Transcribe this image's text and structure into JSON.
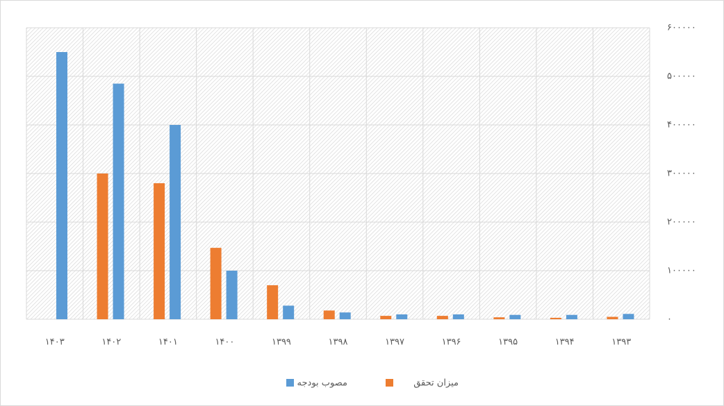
{
  "chart_data": {
    "type": "bar",
    "categories": [
      "۱۴۰۳",
      "۱۴۰۲",
      "۱۴۰۱",
      "۱۴۰۰",
      "۱۳۹۹",
      "۱۳۹۸",
      "۱۳۹۷",
      "۱۳۹۶",
      "۱۳۹۵",
      "۱۳۹۴",
      "۱۳۹۳"
    ],
    "series": [
      {
        "name": "میزان تحقق",
        "color": "#ed7d31",
        "values": [
          null,
          300000,
          280000,
          147000,
          70000,
          18000,
          7000,
          7000,
          4000,
          3000,
          5000
        ]
      },
      {
        "name": "مصوب بودجه",
        "color": "#5b9bd5",
        "values": [
          550000,
          485000,
          400000,
          100000,
          28000,
          14000,
          10000,
          10000,
          9000,
          9000,
          11000
        ]
      }
    ],
    "ylim": [
      0,
      600000
    ],
    "yticks": [
      {
        "value": 0,
        "label": "۰"
      },
      {
        "value": 100000,
        "label": "۱۰۰۰۰۰"
      },
      {
        "value": 200000,
        "label": "۲۰۰۰۰۰"
      },
      {
        "value": 300000,
        "label": "۳۰۰۰۰۰"
      },
      {
        "value": 400000,
        "label": "۴۰۰۰۰۰"
      },
      {
        "value": 500000,
        "label": "۵۰۰۰۰۰"
      },
      {
        "value": 600000,
        "label": "۶۰۰۰۰۰"
      }
    ],
    "grid": true,
    "legend": "bottom"
  }
}
